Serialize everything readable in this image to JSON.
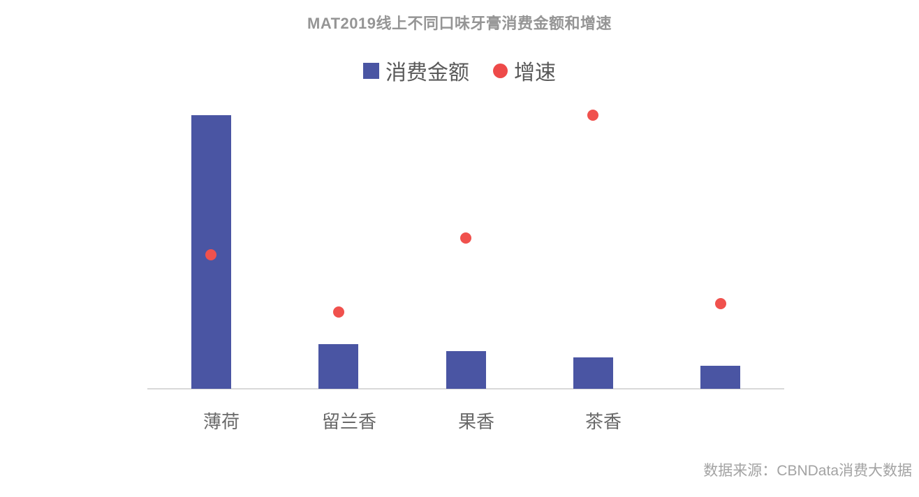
{
  "title": "MAT2019线上不同口味牙膏消费金额和增速",
  "legend": {
    "items": [
      {
        "label": "消费金额",
        "marker": "square",
        "color": "#4A55A3"
      },
      {
        "label": "增速",
        "marker": "dot",
        "color": "#EE4A49"
      }
    ]
  },
  "source_note": "数据来源：CBNData消费大数据",
  "colors": {
    "bar": "#4A55A3",
    "growth_dot": "#F0514D",
    "axis_line": "#D9D9D9",
    "title_text": "#959595",
    "legend_text": "#595959",
    "category_label_text": "#696969",
    "source_text": "#A3A3A3",
    "background": "#FFFFFF"
  },
  "chart_data": {
    "type": "combo",
    "title": "MAT2019线上不同口味牙膏消费金额和增速",
    "categories": [
      "薄荷",
      "留兰香",
      "果香",
      "茶香",
      ""
    ],
    "series": [
      {
        "name": "消费金额",
        "type": "bar",
        "color": "#4A55A3",
        "values": [
          100,
          16.3,
          13.8,
          11.5,
          8.4
        ],
        "value_note": "relative index, tallest bar = 100; value axis not labeled in source image"
      },
      {
        "name": "增速",
        "type": "scatter",
        "color": "#F0514D",
        "values": [
          47,
          27,
          53,
          96,
          30
        ],
        "value_note": "estimated % growth on hidden secondary axis (0 at baseline)"
      }
    ],
    "xlabel": "",
    "ylabel": "",
    "ylim_primary": [
      0,
      100
    ],
    "ylim_secondary": [
      0,
      100
    ],
    "gridlines": false,
    "axis_tick_labels_visible": false,
    "legend_position": "top-center"
  }
}
